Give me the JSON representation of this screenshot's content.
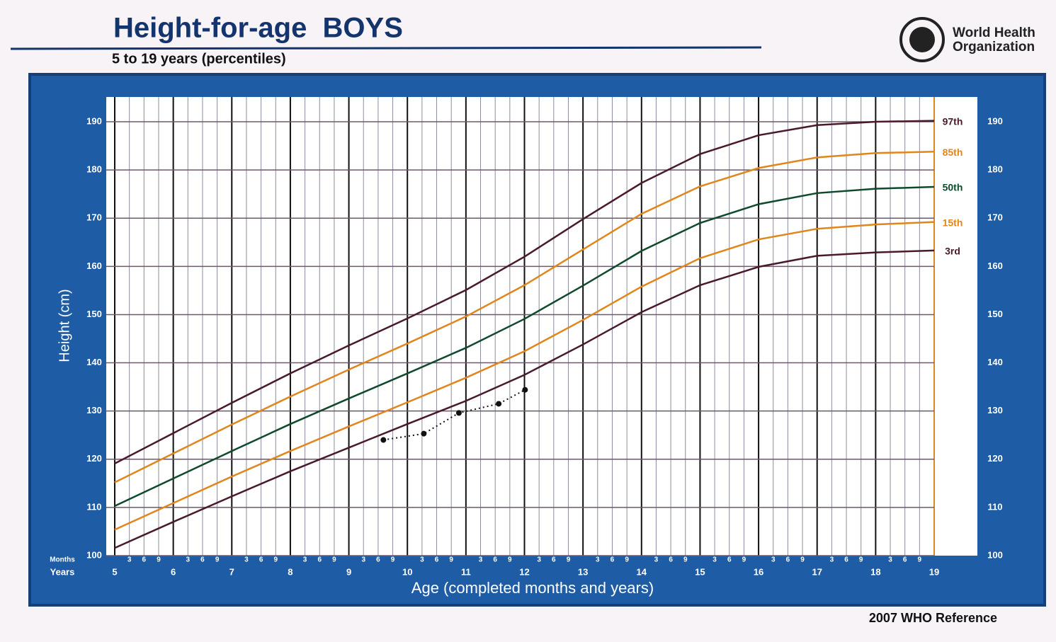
{
  "chart_data": {
    "type": "line",
    "title": "Height-for-age  BOYS",
    "subtitle": "5 to 19 years (percentiles)",
    "logo_text": [
      "World Health",
      "Organization"
    ],
    "source": "2007 WHO Reference",
    "x_label": "Age (completed months and years)",
    "y_label": "Height (cm)",
    "x_row_labels": [
      "Months",
      "Years"
    ],
    "xlim": [
      5,
      19
    ],
    "ylim": [
      100,
      190
    ],
    "xticks": [
      5,
      6,
      7,
      8,
      9,
      10,
      11,
      12,
      13,
      14,
      15,
      16,
      17,
      18
    ],
    "month_ticks": [
      {
        "value": 5.25,
        "label": "3"
      },
      {
        "value": 5.5,
        "label": "6"
      },
      {
        "value": 5.75,
        "label": "9"
      },
      {
        "value": 6.25,
        "label": "3"
      },
      {
        "value": 6.5,
        "label": "6"
      },
      {
        "value": 6.75,
        "label": "9"
      },
      {
        "value": 7.25,
        "label": "3"
      },
      {
        "value": 7.5,
        "label": "6"
      },
      {
        "value": 7.75,
        "label": "9"
      },
      {
        "value": 8.25,
        "label": "3"
      },
      {
        "value": 8.5,
        "label": "6"
      },
      {
        "value": 8.75,
        "label": "9"
      },
      {
        "value": 9.25,
        "label": "3"
      },
      {
        "value": 9.5,
        "label": "6"
      },
      {
        "value": 9.75,
        "label": "9"
      },
      {
        "value": 10.25,
        "label": "3"
      },
      {
        "value": 10.5,
        "label": "6"
      },
      {
        "value": 10.75,
        "label": "9"
      },
      {
        "value": 11.25,
        "label": "3"
      },
      {
        "value": 11.5,
        "label": "6"
      },
      {
        "value": 11.75,
        "label": "9"
      },
      {
        "value": 12.25,
        "label": "3"
      },
      {
        "value": 12.5,
        "label": "6"
      },
      {
        "value": 12.75,
        "label": "9"
      },
      {
        "value": 13.25,
        "label": "3"
      },
      {
        "value": 13.5,
        "label": "6"
      },
      {
        "value": 13.75,
        "label": "9"
      },
      {
        "value": 14.25,
        "label": "3"
      },
      {
        "value": 14.5,
        "label": "6"
      },
      {
        "value": 14.75,
        "label": "9"
      },
      {
        "value": 15.25,
        "label": "3"
      },
      {
        "value": 15.5,
        "label": "6"
      },
      {
        "value": 15.75,
        "label": "9"
      },
      {
        "value": 16.25,
        "label": "3"
      },
      {
        "value": 16.5,
        "label": "6"
      },
      {
        "value": 16.75,
        "label": "9"
      },
      {
        "value": 17.25,
        "label": "3"
      },
      {
        "value": 17.5,
        "label": "6"
      },
      {
        "value": 17.75,
        "label": "9"
      },
      {
        "value": 18.25,
        "label": "3"
      },
      {
        "value": 18.5,
        "label": "6"
      },
      {
        "value": 18.75,
        "label": "9"
      }
    ],
    "yticks": [
      100,
      110,
      120,
      130,
      140,
      150,
      160,
      170,
      180,
      190
    ],
    "grid": true,
    "x": [
      5,
      6,
      7,
      8,
      9,
      10,
      11,
      12,
      13,
      14,
      15,
      16,
      17,
      18,
      19
    ],
    "series": [
      {
        "name": "97th",
        "color": "#4a1a2c",
        "values": [
          119.1,
          125.4,
          131.7,
          137.8,
          143.6,
          149.2,
          155.1,
          162.0,
          169.8,
          177.3,
          183.3,
          187.2,
          189.3,
          190.0,
          190.2
        ]
      },
      {
        "name": "85th",
        "color": "#e0861c",
        "values": [
          115.2,
          121.2,
          127.2,
          133.0,
          138.6,
          144.0,
          149.6,
          156.1,
          163.5,
          170.9,
          176.6,
          180.4,
          182.6,
          183.5,
          183.8
        ]
      },
      {
        "name": "50th",
        "color": "#0f4a2c",
        "values": [
          110.3,
          116.0,
          121.7,
          127.3,
          132.6,
          137.8,
          143.1,
          149.1,
          156.0,
          163.2,
          169.0,
          172.9,
          175.2,
          176.1,
          176.5
        ]
      },
      {
        "name": "15th",
        "color": "#e0861c",
        "values": [
          105.4,
          110.9,
          116.4,
          121.7,
          126.8,
          131.8,
          136.9,
          142.4,
          148.9,
          155.8,
          161.7,
          165.6,
          167.8,
          168.7,
          169.2
        ]
      },
      {
        "name": "3rd",
        "color": "#4a1a2c",
        "values": [
          101.6,
          107.0,
          112.3,
          117.5,
          122.4,
          127.3,
          132.1,
          137.5,
          143.8,
          150.5,
          156.1,
          159.9,
          162.2,
          162.9,
          163.3
        ]
      }
    ],
    "measurements": {
      "color": "#111111",
      "x": [
        9.59,
        10.28,
        10.88,
        11.56,
        12.01
      ],
      "values": [
        124.0,
        125.3,
        129.6,
        131.5,
        134.4
      ]
    }
  }
}
